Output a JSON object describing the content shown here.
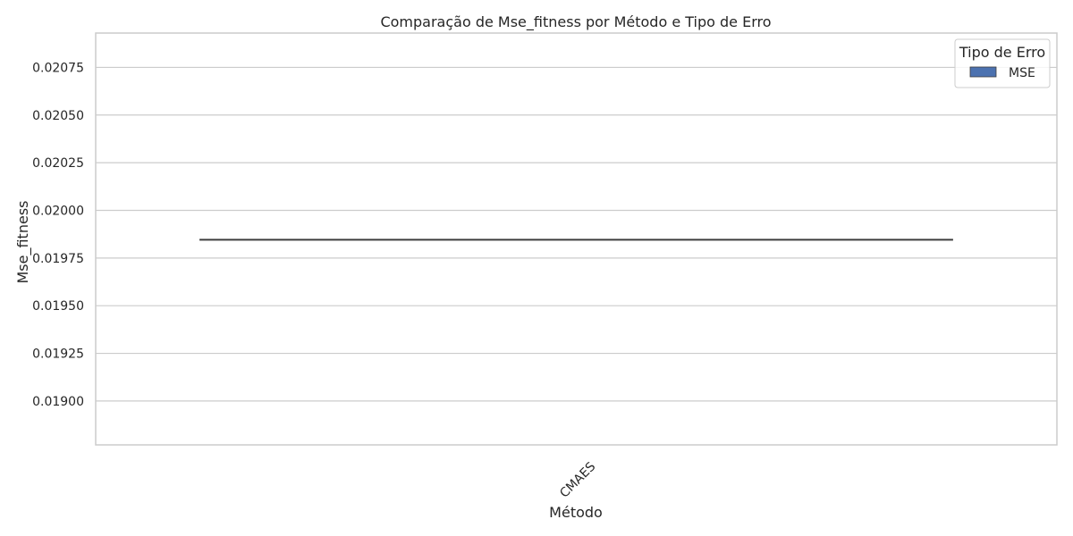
{
  "chart_data": {
    "type": "box",
    "title": "Comparação de Mse_fitness por Método e Tipo de Erro",
    "xlabel": "Método",
    "ylabel": "Mse_fitness",
    "categories": [
      "CMAES"
    ],
    "series": [
      {
        "name": "MSE",
        "values": [
          0.019846
        ],
        "color": "#4c72b0"
      }
    ],
    "ylim": [
      0.01877,
      0.02093
    ],
    "yticks": [
      0.019,
      0.01925,
      0.0195,
      0.01975,
      0.02,
      0.02025,
      0.0205,
      0.02075
    ],
    "ytick_labels": [
      "0.01900",
      "0.01925",
      "0.01950",
      "0.01975",
      "0.02000",
      "0.02025",
      "0.02050",
      "0.02075"
    ],
    "grid": true,
    "legend": {
      "title": "Tipo de Erro",
      "placement": "top-right"
    },
    "median_color": "#3d3d3d",
    "grid_color": "#cccccc",
    "frame_color": "#cccccc"
  }
}
